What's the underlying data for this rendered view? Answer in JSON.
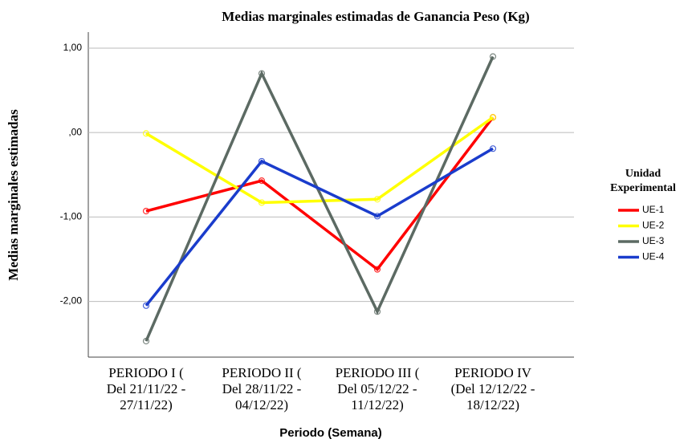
{
  "chart_data": {
    "type": "line",
    "title": "Medias marginales estimadas de Ganancia Peso (Kg)",
    "x_label": "Periodo (Semana)",
    "y_label": "Medias marginales estimadas",
    "legend_title": "Unidad\nExperimental",
    "legend": "right",
    "grid": true,
    "categories": [
      "PERIODO I (\nDel 21/11/22 -\n27/11/22)",
      "PERIODO II (\nDel 28/11/22 -\n04/12/22)",
      "PERIODO III (\nDel 05/12/22 -\n11/12/22)",
      "PERIODO IV\n(Del 12/12/22 -\n18/12/22)"
    ],
    "series": [
      {
        "name": "UE-1",
        "color": "#ff0000",
        "values": [
          -0.93,
          -0.57,
          -1.62,
          0.18
        ]
      },
      {
        "name": "UE-2",
        "color": "#ffff00",
        "values": [
          -0.01,
          -0.83,
          -0.79,
          0.18
        ]
      },
      {
        "name": "UE-3",
        "color": "#5c6a63",
        "values": [
          -2.47,
          0.7,
          -2.12,
          0.9
        ]
      },
      {
        "name": "UE-4",
        "color": "#1a3ccc",
        "values": [
          -2.05,
          -0.34,
          -0.99,
          -0.19
        ]
      }
    ],
    "ylim": [
      -2.66,
      1.19
    ],
    "yticks": [
      {
        "value": 1,
        "label": "1,00"
      },
      {
        "value": 0,
        "label": ",00"
      },
      {
        "value": -1,
        "label": "-1,00"
      },
      {
        "value": -2,
        "label": "-2,00"
      }
    ]
  }
}
